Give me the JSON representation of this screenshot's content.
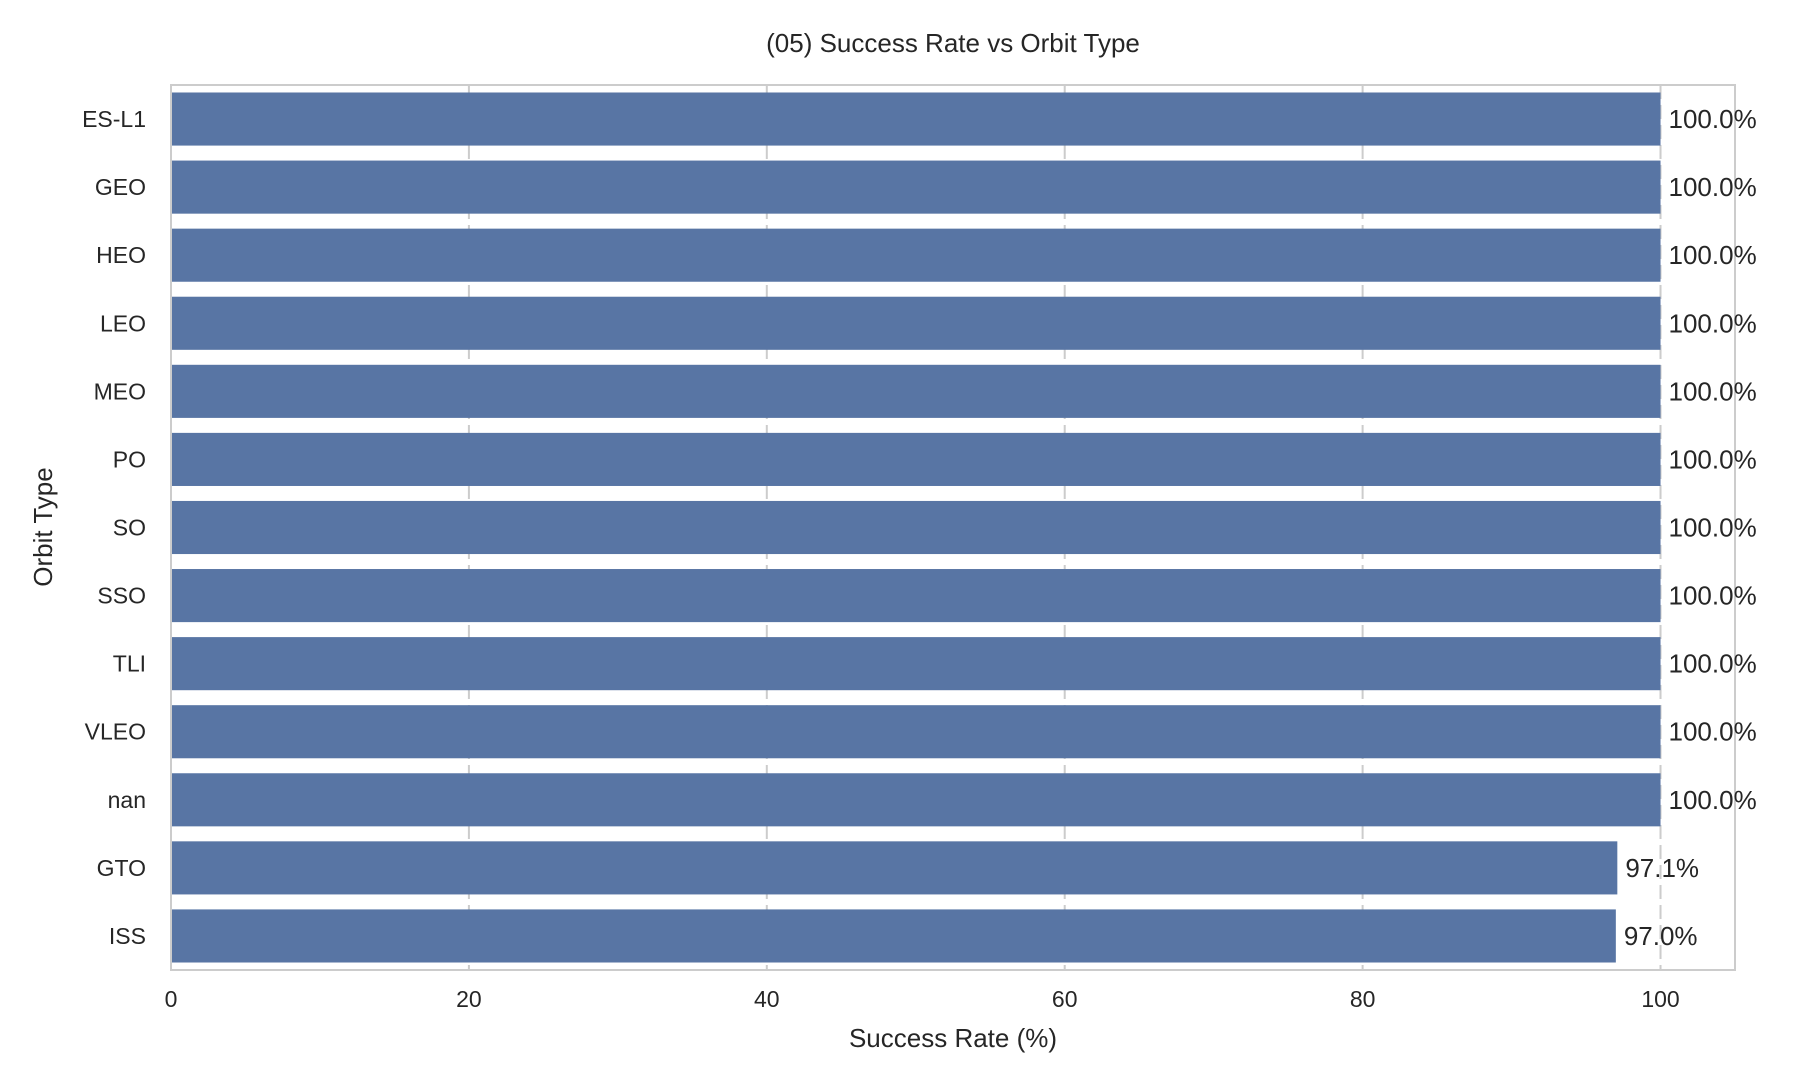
{
  "chart_data": {
    "type": "bar",
    "orientation": "horizontal",
    "title": "(05) Success Rate vs Orbit Type",
    "xlabel": "Success Rate (%)",
    "ylabel": "Orbit Type",
    "xlim": [
      0,
      105
    ],
    "xticks": [
      0,
      20,
      40,
      60,
      80,
      100
    ],
    "grid": true,
    "bar_color": "#5875a4",
    "categories": [
      "ES-L1",
      "GEO",
      "HEO",
      "LEO",
      "MEO",
      "PO",
      "SO",
      "SSO",
      "TLI",
      "VLEO",
      "nan",
      "GTO",
      "ISS"
    ],
    "values": [
      100.0,
      100.0,
      100.0,
      100.0,
      100.0,
      100.0,
      100.0,
      100.0,
      100.0,
      100.0,
      100.0,
      97.1,
      97.0
    ],
    "data_labels": [
      "100.0%",
      "100.0%",
      "100.0%",
      "100.0%",
      "100.0%",
      "100.0%",
      "100.0%",
      "100.0%",
      "100.0%",
      "100.0%",
      "100.0%",
      "97.1%",
      "97.0%"
    ]
  }
}
